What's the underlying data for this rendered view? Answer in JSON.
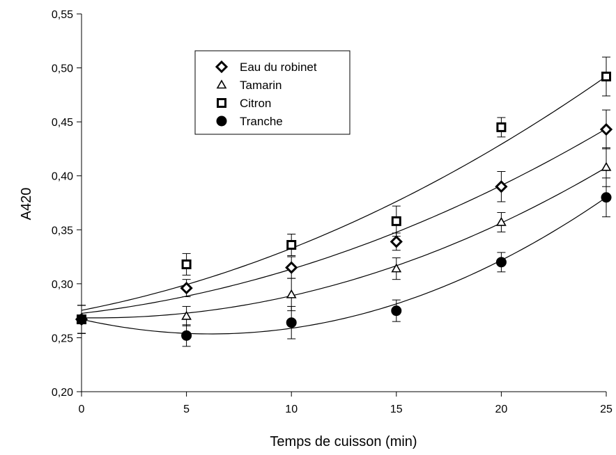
{
  "chart_data": {
    "type": "scatter",
    "title": "",
    "xlabel": "Temps de cuisson (min)",
    "ylabel": "A420",
    "xlim": [
      0,
      25
    ],
    "ylim": [
      0.2,
      0.55
    ],
    "x_ticks": [
      0,
      5,
      10,
      15,
      20,
      25
    ],
    "x_tick_labels": [
      "0",
      "5",
      "10",
      "15",
      "20",
      "25"
    ],
    "y_ticks": [
      0.2,
      0.25,
      0.3,
      0.35,
      0.4,
      0.45,
      0.5,
      0.55
    ],
    "y_tick_labels": [
      "0,20",
      "0,25",
      "0,30",
      "0,35",
      "0,40",
      "0,45",
      "0,50",
      "0,55"
    ],
    "grid": false,
    "legend_position": "top-center",
    "x": [
      0,
      5,
      10,
      15,
      20,
      25
    ],
    "series": [
      {
        "name": "Eau du robinet",
        "marker": "diamond",
        "values": [
          0.267,
          0.296,
          0.315,
          0.339,
          0.39,
          0.443
        ],
        "errors": [
          0.013,
          0.008,
          0.01,
          0.008,
          0.014,
          0.018
        ],
        "fit": [
          0.273,
          0.288,
          0.313,
          0.348,
          0.392,
          0.443
        ]
      },
      {
        "name": "Tamarin",
        "marker": "triangle",
        "values": [
          0.267,
          0.27,
          0.29,
          0.314,
          0.357,
          0.408
        ],
        "errors": [
          0.013,
          0.009,
          0.015,
          0.01,
          0.009,
          0.018
        ],
        "fit": [
          0.268,
          0.274,
          0.288,
          0.317,
          0.356,
          0.408
        ]
      },
      {
        "name": "Citron",
        "marker": "square",
        "values": [
          0.267,
          0.318,
          0.336,
          0.358,
          0.445,
          0.492
        ],
        "errors": [
          0.013,
          0.01,
          0.01,
          0.014,
          0.009,
          0.018
        ],
        "fit": [
          0.275,
          0.3,
          0.333,
          0.375,
          0.43,
          0.492
        ]
      },
      {
        "name": "Tranche",
        "marker": "circle",
        "values": [
          0.267,
          0.252,
          0.264,
          0.275,
          0.32,
          0.38
        ],
        "errors": [
          0.013,
          0.01,
          0.015,
          0.01,
          0.009,
          0.018
        ],
        "fit": [
          0.267,
          0.254,
          0.259,
          0.281,
          0.322,
          0.38
        ]
      }
    ]
  }
}
